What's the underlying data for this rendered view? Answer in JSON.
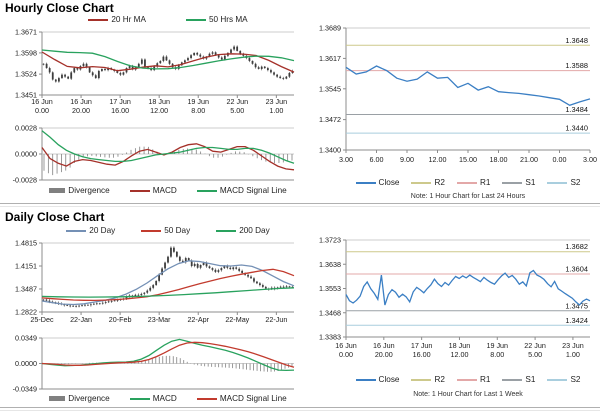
{
  "colors": {
    "candle": "#3d3d3d",
    "red_line": "#a5312a",
    "red_line_bright": "#c23b2e",
    "green_line": "#29a25e",
    "blue_close": "#3b7fc4",
    "blue_ma20_daily": "#7490b5",
    "divergence": "#808080",
    "r2": "#cdc98c",
    "r1": "#e3a8a8",
    "s1": "#9aa0a5",
    "s2": "#a9cede"
  },
  "legends": {
    "hourly_price": [
      {
        "label": "20 Hr MA",
        "color": "red_line"
      },
      {
        "label": "50 Hrs MA",
        "color": "green_line"
      }
    ],
    "hourly_macd": [
      {
        "label": "Divergence",
        "color": "divergence",
        "swatch": "bar"
      },
      {
        "label": "MACD",
        "color": "red_line"
      },
      {
        "label": "MACD Signal Line",
        "color": "green_line"
      }
    ],
    "daily_price": [
      {
        "label": "20 Day",
        "color": "blue_ma20_daily"
      },
      {
        "label": "50 Day",
        "color": "red_line_bright"
      },
      {
        "label": "200 Day",
        "color": "green_line"
      }
    ],
    "daily_macd": [
      {
        "label": "Divergence",
        "color": "divergence",
        "swatch": "bar"
      },
      {
        "label": "MACD",
        "color": "green_line"
      },
      {
        "label": "MACD Signal Line",
        "color": "red_line_bright"
      }
    ],
    "pivot": [
      {
        "label": "Close",
        "color": "blue_close"
      },
      {
        "label": "R2",
        "color": "r2"
      },
      {
        "label": "R1",
        "color": "r1"
      },
      {
        "label": "S1",
        "color": "s1"
      },
      {
        "label": "S2",
        "color": "s2"
      }
    ]
  },
  "chart_data": [
    {
      "id": "hourly_price",
      "type": "candlestick",
      "title": "Hourly Close Chart",
      "yticks": [
        1.3671,
        1.3598,
        1.3524,
        1.3451
      ],
      "ylim": [
        1.3451,
        1.3671
      ],
      "xticklabels": [
        [
          "16 Jun",
          "0.00"
        ],
        [
          "16 Jun",
          "20.00"
        ],
        [
          "17 Jun",
          "16.00"
        ],
        [
          "18 Jun",
          "12.00"
        ],
        [
          "19 Jun",
          "8.00"
        ],
        [
          "22 Jun",
          "5.00"
        ],
        [
          "23 Jun",
          "1.00"
        ]
      ],
      "series": [
        {
          "name": "Close",
          "type": "candle",
          "color": "candle",
          "values": [
            1.356,
            1.3545,
            1.353,
            1.3505,
            1.3498,
            1.351,
            1.3522,
            1.3515,
            1.3508,
            1.353,
            1.3545,
            1.354,
            1.3552,
            1.356,
            1.3548,
            1.353,
            1.352,
            1.351,
            1.3535,
            1.3542,
            1.3538,
            1.3545,
            1.354,
            1.3535,
            1.3528,
            1.3522,
            1.353,
            1.3545,
            1.3552,
            1.354,
            1.3548,
            1.356,
            1.3575,
            1.3548,
            1.3545,
            1.3538,
            1.355,
            1.3562,
            1.357,
            1.3585,
            1.3572,
            1.356,
            1.3548,
            1.3542,
            1.3555,
            1.3565,
            1.3572,
            1.358,
            1.359,
            1.3598,
            1.3592,
            1.3585,
            1.3578,
            1.3585,
            1.3595,
            1.36,
            1.359,
            1.3582,
            1.3575,
            1.3588,
            1.3598,
            1.361,
            1.362,
            1.3605,
            1.3595,
            1.3588,
            1.358,
            1.357,
            1.356,
            1.3548,
            1.3542,
            1.355,
            1.3545,
            1.3538,
            1.353,
            1.3522,
            1.3515,
            1.351,
            1.3508,
            1.3515,
            1.3528,
            1.3535
          ]
        },
        {
          "name": "20 Hr MA",
          "type": "line",
          "color": "red_line",
          "values": [
            1.3601,
            1.3575,
            1.3551,
            1.3546,
            1.355,
            1.3547,
            1.3536,
            1.3541,
            1.3548,
            1.3553,
            1.3549,
            1.3557,
            1.357,
            1.3583,
            1.3592,
            1.3595,
            1.3594,
            1.3589,
            1.3572,
            1.355,
            1.3531
          ]
        },
        {
          "name": "50 Hrs MA",
          "type": "line",
          "color": "green_line",
          "values": [
            1.3608,
            1.3604,
            1.36,
            1.3599,
            1.3597,
            1.3585,
            1.3568,
            1.3553,
            1.3545,
            1.3542,
            1.3543,
            1.3547,
            1.3554,
            1.3562,
            1.357,
            1.3577,
            1.3583,
            1.3587,
            1.3586,
            1.3581,
            1.3571
          ]
        }
      ]
    },
    {
      "id": "hourly_macd",
      "type": "macd",
      "yticks": [
        0.0028,
        0.0,
        -0.0028
      ],
      "series": [
        {
          "name": "MACD",
          "type": "line",
          "color": "red_line",
          "values": [
            0.0007,
            -0.0005,
            -0.001,
            -0.0013,
            -0.0008,
            -0.0006,
            -0.0007,
            -0.0009,
            -0.0011,
            -0.0012,
            -0.0008,
            -0.0002,
            0.0003,
            0.0005,
            0.0002,
            -0.0001,
            0.0002,
            0.0007,
            0.001,
            0.0011,
            0.0008,
            0.0003,
            0.0002,
            0.0005,
            0.0008,
            0.0008,
            0.0004,
            -0.0002,
            -0.0008,
            -0.0013,
            -0.0016,
            -0.0017
          ]
        },
        {
          "name": "MACD Signal Line",
          "type": "line",
          "color": "green_line",
          "values": [
            0.0025,
            0.0018,
            0.001,
            0.0004,
            0.0,
            -0.0003,
            -0.0005,
            -0.0006,
            -0.0007,
            -0.0008,
            -0.0008,
            -0.0007,
            -0.0005,
            -0.0003,
            -0.0001,
            0.0,
            0.0001,
            0.0002,
            0.0004,
            0.0006,
            0.0007,
            0.0007,
            0.0006,
            0.0005,
            0.0005,
            0.0006,
            0.0006,
            0.0004,
            0.0001,
            -0.0003,
            -0.0007,
            -0.001
          ]
        }
      ]
    },
    {
      "id": "hourly_pivot_24h",
      "type": "line",
      "note": "Note: 1 Hour Chart for Last 24 Hours",
      "yticks": [
        1.3689,
        1.3617,
        1.3545,
        1.3472,
        1.34
      ],
      "xticklabels": [
        "3.00",
        "6.00",
        "9.00",
        "12.00",
        "15.00",
        "18.00",
        "21.00",
        "0.00",
        "3.00"
      ],
      "pivots": [
        {
          "name": "R2",
          "value": 1.3648,
          "label": "1.3648",
          "color": "r2"
        },
        {
          "name": "R1",
          "value": 1.3588,
          "label": "1.3588",
          "color": "r1"
        },
        {
          "name": "S1",
          "value": 1.3484,
          "label": "1.3484",
          "color": "s1"
        },
        {
          "name": "S2",
          "value": 1.344,
          "label": "1.3440",
          "color": "s2"
        }
      ],
      "series": [
        {
          "name": "Close",
          "type": "line",
          "color": "blue_close",
          "values": [
            1.3596,
            1.358,
            1.3585,
            1.3599,
            1.3588,
            1.357,
            1.3563,
            1.3568,
            1.3585,
            1.357,
            1.3572,
            1.3548,
            1.3558,
            1.3542,
            1.355,
            1.3538,
            1.3536,
            1.3534,
            1.3531,
            1.3528,
            1.3524,
            1.352,
            1.3506,
            1.3514,
            1.3521
          ]
        }
      ]
    },
    {
      "id": "daily_price",
      "type": "candlestick",
      "title": "Daily Close Chart",
      "yticks": [
        1.4815,
        1.4151,
        1.3487,
        1.2822
      ],
      "ylim": [
        1.2822,
        1.4815
      ],
      "xticklabels": [
        "25-Dec",
        "22-Jan",
        "20-Feb",
        "23-Mar",
        "22-Apr",
        "22-May",
        "22-Jun"
      ],
      "series": [
        {
          "name": "Close",
          "type": "candle",
          "color": "candle",
          "values": [
            1.318,
            1.315,
            1.312,
            1.3105,
            1.3085,
            1.3062,
            1.304,
            1.3022,
            1.3008,
            1.3,
            1.2998,
            1.2992,
            1.3005,
            1.3018,
            1.303,
            1.3022,
            1.3042,
            1.306,
            1.3072,
            1.3068,
            1.3088,
            1.3105,
            1.3128,
            1.3142,
            1.3155,
            1.317,
            1.3188,
            1.3205,
            1.3262,
            1.3298,
            1.328,
            1.3318,
            1.331,
            1.3345,
            1.338,
            1.344,
            1.352,
            1.36,
            1.372,
            1.39,
            1.408,
            1.425,
            1.442,
            1.468,
            1.456,
            1.442,
            1.43,
            1.426,
            1.438,
            1.431,
            1.415,
            1.421,
            1.41,
            1.418,
            1.424,
            1.414,
            1.409,
            1.404,
            1.398,
            1.403,
            1.409,
            1.415,
            1.41,
            1.406,
            1.411,
            1.407,
            1.401,
            1.395,
            1.3895,
            1.3845,
            1.3795,
            1.37,
            1.365,
            1.36,
            1.3548,
            1.35,
            1.3478,
            1.3522,
            1.3492,
            1.3532,
            1.3552,
            1.354,
            1.3562,
            1.3545,
            1.355
          ]
        },
        {
          "name": "20 Day",
          "type": "line",
          "color": "blue_ma20_daily",
          "values": [
            1.314,
            1.309,
            1.305,
            1.304,
            1.306,
            1.311,
            1.316,
            1.323,
            1.334,
            1.348,
            1.366,
            1.387,
            1.407,
            1.422,
            1.43,
            1.428,
            1.422,
            1.416,
            1.415,
            1.418,
            1.414,
            1.402,
            1.386,
            1.37,
            1.358
          ]
        },
        {
          "name": "50 Day",
          "type": "line",
          "color": "red_line_bright",
          "values": [
            1.323,
            1.3205,
            1.3185,
            1.317,
            1.316,
            1.3158,
            1.3165,
            1.318,
            1.32,
            1.3228,
            1.3265,
            1.332,
            1.339,
            1.347,
            1.3555,
            1.364,
            1.3715,
            1.379,
            1.3855,
            1.3915,
            1.397,
            1.402,
            1.4055,
            1.399,
            1.387
          ]
        },
        {
          "name": "200 Day",
          "type": "line",
          "color": "green_line",
          "values": [
            1.3272,
            1.3262,
            1.3255,
            1.3252,
            1.3254,
            1.326,
            1.327,
            1.3284,
            1.3302,
            1.3324,
            1.335,
            1.3378,
            1.3408,
            1.344,
            1.3472,
            1.35,
            1.352
          ]
        }
      ]
    },
    {
      "id": "daily_macd",
      "type": "macd",
      "yticks": [
        0.0349,
        0.0,
        -0.0349
      ],
      "series": [
        {
          "name": "MACD",
          "type": "line",
          "color": "green_line",
          "values": [
            0.0,
            -0.0012,
            -0.0022,
            -0.003,
            -0.0028,
            -0.0022,
            -0.0012,
            -0.0002,
            0.0008,
            0.0015,
            0.0018,
            0.002,
            0.003,
            0.006,
            0.011,
            0.018,
            0.025,
            0.0305,
            0.033,
            0.0305,
            0.0275,
            0.025,
            0.0228,
            0.0205,
            0.018,
            0.015,
            0.0115,
            0.0075,
            0.003,
            -0.0015,
            -0.006,
            -0.009,
            -0.0095,
            -0.009
          ]
        },
        {
          "name": "MACD Signal Line",
          "type": "line",
          "color": "red_line_bright",
          "values": [
            0.0,
            -0.0006,
            -0.0013,
            -0.002,
            -0.0024,
            -0.0024,
            -0.002,
            -0.0013,
            -0.0005,
            0.0003,
            0.001,
            0.0014,
            0.0018,
            0.003,
            0.0055,
            0.0095,
            0.0145,
            0.02,
            0.025,
            0.028,
            0.029,
            0.0285,
            0.0272,
            0.0255,
            0.0235,
            0.0212,
            0.0188,
            0.016,
            0.0128,
            0.0092,
            0.0055,
            0.0018,
            -0.002,
            -0.005
          ]
        }
      ]
    },
    {
      "id": "hourly_pivot_1week",
      "type": "line",
      "note": "Note: 1 Hour Chart for  Last 1 Week",
      "yticks": [
        1.3723,
        1.3638,
        1.3553,
        1.3468,
        1.3383
      ],
      "xticklabels": [
        [
          "16 Jun",
          "0.00"
        ],
        [
          "16 Jun",
          "20.00"
        ],
        [
          "17 Jun",
          "16.00"
        ],
        [
          "18 Jun",
          "12.00"
        ],
        [
          "19 Jun",
          "8.00"
        ],
        [
          "22 Jun",
          "5.00"
        ],
        [
          "23 Jun",
          "1.00"
        ]
      ],
      "pivots": [
        {
          "name": "R2",
          "value": 1.3682,
          "label": "1.3682",
          "color": "r2"
        },
        {
          "name": "R1",
          "value": 1.3604,
          "label": "1.3604",
          "color": "r1"
        },
        {
          "name": "S1",
          "value": 1.3475,
          "label": "1.3475",
          "color": "s1"
        },
        {
          "name": "S2",
          "value": 1.3424,
          "label": "1.3424",
          "color": "s2"
        }
      ],
      "series": [
        {
          "name": "Close",
          "type": "line",
          "color": "blue_close",
          "values": [
            1.3532,
            1.351,
            1.3502,
            1.3512,
            1.3526,
            1.356,
            1.3576,
            1.3552,
            1.3536,
            1.3515,
            1.36,
            1.3495,
            1.3532,
            1.3549,
            1.354,
            1.3522,
            1.3533,
            1.3524,
            1.3506,
            1.3541,
            1.3557,
            1.3548,
            1.3538,
            1.3553,
            1.3566,
            1.3586,
            1.357,
            1.356,
            1.3574,
            1.3565,
            1.3581,
            1.3595,
            1.3588,
            1.3597,
            1.359,
            1.36,
            1.3592,
            1.3585,
            1.3577,
            1.3592,
            1.3582,
            1.3574,
            1.3568,
            1.3584,
            1.3597,
            1.3607,
            1.3592,
            1.3599,
            1.3586,
            1.3568,
            1.3576,
            1.3562,
            1.3608,
            1.3616,
            1.36,
            1.3594,
            1.3585,
            1.357,
            1.3559,
            1.3578,
            1.3552,
            1.3544,
            1.3535,
            1.3527,
            1.3519,
            1.3506,
            1.3495,
            1.3509,
            1.3516,
            1.351
          ]
        }
      ]
    }
  ]
}
